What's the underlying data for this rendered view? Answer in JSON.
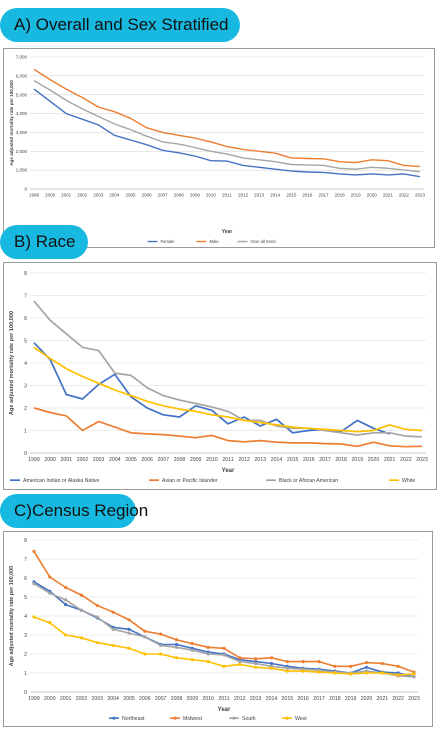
{
  "headings": {
    "a": "A) Overall and Sex Stratified",
    "b": "B) Race",
    "c": "C)Census Region"
  },
  "chart_data": [
    {
      "type": "line",
      "title": "",
      "xlabel": "Year",
      "ylabel": "Age adjusted mortality rate per 100,000",
      "ylim": [
        0,
        7
      ],
      "yticks": [
        "0",
        "1,000",
        "2,000",
        "3,000",
        "4,000",
        "5,000",
        "6,000",
        "7,000"
      ],
      "grid": true,
      "legend": "bottom",
      "x": [
        "1999",
        "2000",
        "2001",
        "2002",
        "2003",
        "2004",
        "2005",
        "2006",
        "2007",
        "2008",
        "2009",
        "2010",
        "2011",
        "2012",
        "2013",
        "2014",
        "2015",
        "2016",
        "2017",
        "2018",
        "2019",
        "2020",
        "2021",
        "2022",
        "2023"
      ],
      "series": [
        {
          "name": "Female",
          "color": "#4472c4",
          "values": [
            5.3,
            4.65,
            4.0,
            3.7,
            3.4,
            2.85,
            2.6,
            2.35,
            2.05,
            1.92,
            1.75,
            1.5,
            1.48,
            1.25,
            1.15,
            1.05,
            0.95,
            0.9,
            0.88,
            0.8,
            0.75,
            0.8,
            0.75,
            0.8,
            0.65
          ]
        },
        {
          "name": "Male",
          "color": "#ed7d31",
          "values": [
            6.35,
            5.8,
            5.3,
            4.85,
            4.35,
            4.1,
            3.75,
            3.25,
            3.0,
            2.85,
            2.7,
            2.5,
            2.25,
            2.1,
            2.0,
            1.9,
            1.65,
            1.62,
            1.6,
            1.45,
            1.4,
            1.55,
            1.5,
            1.25,
            1.2
          ]
        },
        {
          "name": "Over all trend",
          "color": "#a5a5a5",
          "values": [
            5.75,
            5.25,
            4.7,
            4.25,
            3.85,
            3.45,
            3.15,
            2.8,
            2.5,
            2.38,
            2.2,
            2.0,
            1.85,
            1.65,
            1.55,
            1.45,
            1.3,
            1.28,
            1.25,
            1.1,
            1.05,
            1.15,
            1.1,
            1.0,
            0.92
          ]
        }
      ]
    },
    {
      "type": "line",
      "title": "",
      "xlabel": "Year",
      "ylabel": "Age adjusted mortality rate per 100,000",
      "ylim": [
        0,
        8
      ],
      "yticks": [
        "0",
        "1",
        "2",
        "3",
        "4",
        "5",
        "6",
        "7",
        "8"
      ],
      "grid": true,
      "legend": "bottom",
      "x": [
        "1999",
        "2000",
        "2001",
        "2002",
        "2003",
        "2004",
        "2005",
        "2006",
        "2007",
        "2008",
        "2009",
        "2010",
        "2011",
        "2012",
        "2013",
        "2014",
        "2015",
        "2016",
        "2017",
        "2018",
        "2019",
        "2020",
        "2021",
        "2022",
        "2023"
      ],
      "series": [
        {
          "name": "American Indian or Alaska Native",
          "color": "#4472c4",
          "values": [
            4.9,
            4.15,
            2.6,
            2.4,
            3.05,
            3.5,
            2.5,
            2.0,
            1.7,
            1.6,
            2.1,
            1.9,
            1.3,
            1.6,
            1.2,
            1.5,
            0.9,
            1.0,
            1.05,
            0.95,
            1.45,
            1.1,
            0.85,
            null,
            null
          ]
        },
        {
          "name": "Asian or Pacific Islander",
          "color": "#ed7d31",
          "values": [
            2.0,
            1.8,
            1.65,
            1.0,
            1.4,
            1.15,
            0.9,
            0.85,
            0.82,
            0.75,
            0.68,
            0.78,
            0.55,
            0.5,
            0.55,
            0.48,
            0.45,
            0.45,
            0.42,
            0.4,
            0.3,
            0.48,
            0.32,
            0.28,
            0.3
          ]
        },
        {
          "name": "Black or African American",
          "color": "#a5a5a5",
          "values": [
            6.75,
            5.9,
            5.3,
            4.7,
            4.55,
            3.55,
            3.45,
            2.9,
            2.55,
            2.35,
            2.2,
            2.05,
            1.85,
            1.45,
            1.45,
            1.2,
            1.1,
            1.1,
            1.0,
            0.9,
            0.8,
            0.9,
            0.9,
            0.75,
            0.72
          ]
        },
        {
          "name": "White",
          "color": "#ffc000",
          "values": [
            4.7,
            4.2,
            3.75,
            3.4,
            3.1,
            2.8,
            2.55,
            2.3,
            2.1,
            1.95,
            1.85,
            1.7,
            1.6,
            1.45,
            1.35,
            1.25,
            1.15,
            1.1,
            1.05,
            1.0,
            0.95,
            1.0,
            1.25,
            1.05,
            1.0
          ]
        }
      ]
    },
    {
      "type": "line",
      "title": "",
      "xlabel": "Year",
      "ylabel": "Age adjusted mortality rate per 100,000",
      "ylim": [
        0,
        8
      ],
      "yticks": [
        "0",
        "1",
        "2",
        "3",
        "4",
        "5",
        "6",
        "7",
        "8"
      ],
      "grid": true,
      "legend": "bottom",
      "x": [
        "1999",
        "2000",
        "2001",
        "2002",
        "2003",
        "2004",
        "2005",
        "2006",
        "2007",
        "2008",
        "2009",
        "2010",
        "2011",
        "2012",
        "2013",
        "2014",
        "2015",
        "2016",
        "2017",
        "2018",
        "2019",
        "2020",
        "2021",
        "2022",
        "2023"
      ],
      "series": [
        {
          "name": "Northeast",
          "color": "#4472c4",
          "values": [
            5.8,
            5.3,
            4.6,
            4.3,
            3.9,
            3.4,
            3.3,
            2.9,
            2.5,
            2.5,
            2.3,
            2.1,
            2.0,
            1.7,
            1.6,
            1.5,
            1.35,
            1.25,
            1.2,
            1.1,
            1.0,
            1.3,
            1.05,
            1.0,
            0.8
          ]
        },
        {
          "name": "Midwest",
          "color": "#ed7d31",
          "values": [
            7.4,
            6.05,
            5.5,
            5.1,
            4.55,
            4.2,
            3.8,
            3.2,
            3.05,
            2.75,
            2.55,
            2.35,
            2.3,
            1.8,
            1.75,
            1.8,
            1.6,
            1.6,
            1.6,
            1.35,
            1.35,
            1.55,
            1.5,
            1.35,
            1.05
          ]
        },
        {
          "name": "South",
          "color": "#a5a5a5",
          "values": [
            5.7,
            5.2,
            4.85,
            4.3,
            3.95,
            3.3,
            3.1,
            2.9,
            2.45,
            2.35,
            2.2,
            2.0,
            1.95,
            1.6,
            1.5,
            1.35,
            1.25,
            1.2,
            1.15,
            1.05,
            1.0,
            1.1,
            1.0,
            0.85,
            0.8
          ]
        },
        {
          "name": "West",
          "color": "#ffc000",
          "values": [
            3.95,
            3.65,
            3.0,
            2.85,
            2.6,
            2.45,
            2.3,
            2.0,
            2.0,
            1.8,
            1.7,
            1.6,
            1.35,
            1.45,
            1.3,
            1.25,
            1.1,
            1.1,
            1.05,
            1.0,
            0.95,
            1.0,
            1.0,
            0.9,
            0.95
          ]
        }
      ]
    }
  ]
}
